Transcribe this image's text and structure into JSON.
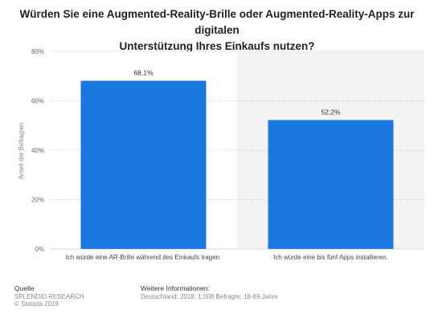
{
  "title_lines": [
    "Würden Sie eine Augmented-Reality-Brille oder Augmented-Reality-Apps zur digitalen",
    "Unterstützung Ihres Einkaufs nutzen?"
  ],
  "colors": {
    "bar": "#1a78e0",
    "panel_left": "#ffffff",
    "panel_right": "#f3f3f3",
    "grid": "#d8d8d8"
  },
  "chart_data": {
    "type": "bar",
    "categories": [
      "Ich würde eine AR-Brille während des Einkaufs tragen.",
      "Ich würde eine bis fünf Apps installieren."
    ],
    "values": [
      68.1,
      52.2
    ],
    "value_labels": [
      "68,1%",
      "52,2%"
    ],
    "ylabel": "Anteil der Befragten",
    "ylim": [
      0,
      80
    ],
    "yticks": [
      0,
      20,
      40,
      60,
      80
    ],
    "ytick_labels": [
      "0%",
      "20%",
      "40%",
      "60%",
      "80%"
    ],
    "grid": true,
    "legend": "none"
  },
  "footer": {
    "left_heading": "Quelle",
    "left_lines": [
      "SPLENDID RESEARCH",
      "© Statista 2019"
    ],
    "right_heading": "Weitere Informationen:",
    "right_lines": [
      "Deutschland; 2018; 1.008 Befragte; 18-69 Jahre"
    ]
  }
}
